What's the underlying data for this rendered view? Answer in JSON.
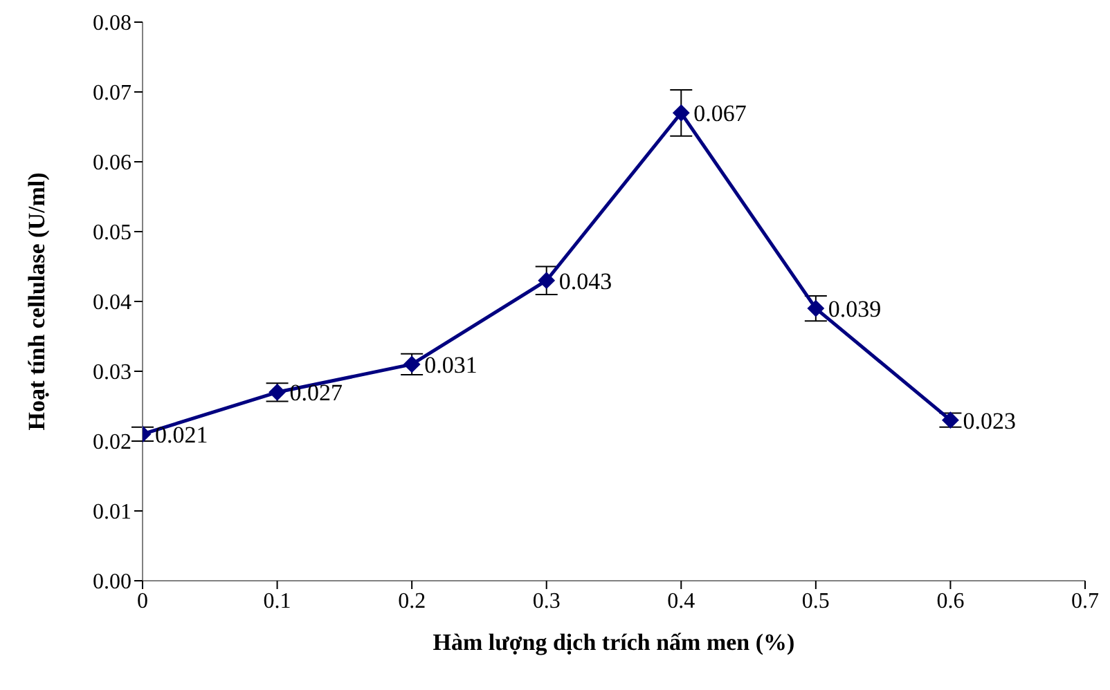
{
  "chart_data": {
    "type": "line",
    "xlabel": "Hàm lượng dịch trích nấm men (%)",
    "ylabel": "Hoạt tính cellulase (U/ml)",
    "x": [
      0,
      0.1,
      0.2,
      0.3,
      0.4,
      0.5,
      0.6
    ],
    "series": [
      {
        "color": "#000080",
        "values": [
          0.021,
          0.027,
          0.031,
          0.043,
          0.067,
          0.039,
          0.023
        ],
        "errors": [
          0.001,
          0.0013,
          0.0015,
          0.002,
          0.0033,
          0.0018,
          0.001
        ]
      }
    ],
    "xlim": [
      0,
      0.7
    ],
    "xticks": [
      0,
      0.1,
      0.2,
      0.3,
      0.4,
      0.5,
      0.6,
      0.7
    ],
    "ylim": [
      0,
      0.08
    ],
    "yticks": [
      {
        "value": 0,
        "label": "0.00"
      },
      {
        "value": 0.01,
        "label": "0.01"
      },
      {
        "value": 0.02,
        "label": "0.02"
      },
      {
        "value": 0.03,
        "label": "0.03"
      },
      {
        "value": 0.04,
        "label": "0.04"
      },
      {
        "value": 0.05,
        "label": "0.05"
      },
      {
        "value": 0.06,
        "label": "0.06"
      },
      {
        "value": 0.07,
        "label": "0.07"
      },
      {
        "value": 0.08,
        "label": "0.08"
      }
    ],
    "grid": false,
    "legend": false,
    "marker": "diamond",
    "line_style": "solid",
    "data_labels": true
  }
}
